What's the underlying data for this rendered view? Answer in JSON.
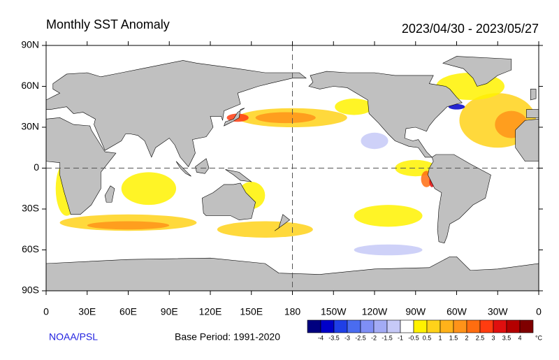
{
  "title": "Monthly SST Anomaly",
  "date_range": "2023/04/30 - 2023/05/27",
  "map": {
    "lat_labels": [
      "90N",
      "60N",
      "30N",
      "0",
      "30S",
      "60S",
      "90S"
    ],
    "lon_labels": [
      "0",
      "30E",
      "60E",
      "90E",
      "120E",
      "150E",
      "180",
      "150W",
      "120W",
      "90W",
      "60W",
      "30W",
      "0"
    ]
  },
  "credit": "NOAA/PSL",
  "base_period": "Base Period: 1991-2020",
  "colorbar": {
    "labels": [
      -4,
      -3.5,
      -3,
      -2.5,
      -2,
      -1.5,
      -1,
      -0.5,
      0.5,
      1,
      1.5,
      2,
      2.5,
      3,
      3.5,
      4
    ],
    "colors": [
      "#00007f",
      "#0000c8",
      "#1f3fe6",
      "#4a6cf0",
      "#7f8ff5",
      "#a3abf5",
      "#c6c9f7",
      "#ffffff",
      "#fff200",
      "#ffd21a",
      "#ffb21a",
      "#ff9319",
      "#ff6d10",
      "#ff3c10",
      "#e00f0f",
      "#b40000",
      "#7f0000"
    ],
    "unit": "°C"
  }
}
